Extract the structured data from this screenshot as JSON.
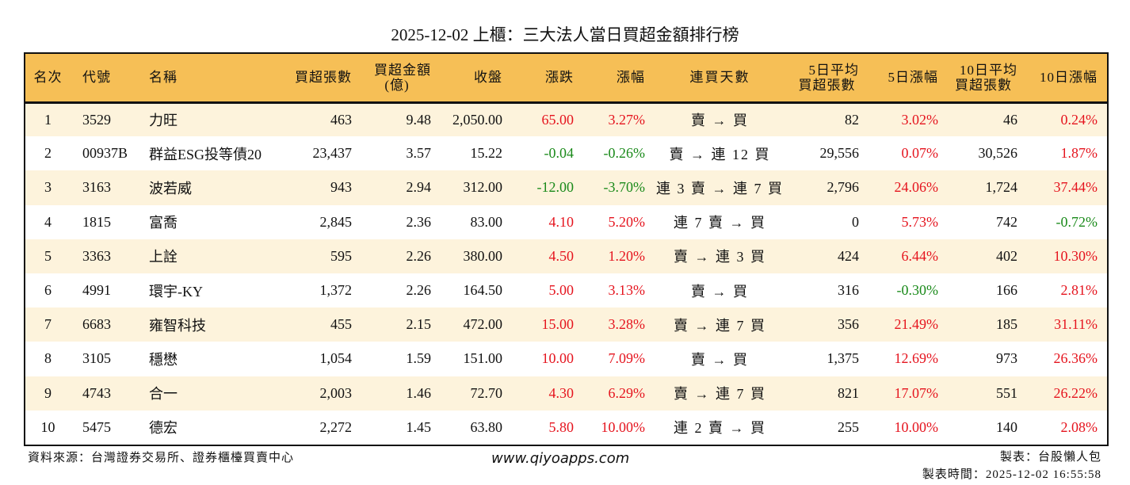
{
  "title": "2025-12-02 上櫃：三大法人當日買超金額排行榜",
  "headers": [
    "名次",
    "代號",
    "名稱",
    "買超張數",
    "買超金額\n(億)",
    "收盤",
    "漲跌",
    "漲幅",
    "連買天數",
    "5日平均\n買超張數",
    "5日漲幅",
    "10日平均\n買超張數",
    "10日漲幅"
  ],
  "colors": {
    "up": "#e5141e",
    "down": "#1a8a1a",
    "header_bg": "#f6bf56",
    "row_alt": "#fdf3dc"
  },
  "rows": [
    [
      "1",
      "3529",
      "力旺",
      "463",
      "9.48",
      "2,050.00",
      "65.00",
      "3.27%",
      "賣 → 買",
      "82",
      "3.02%",
      "46",
      "0.24%"
    ],
    [
      "2",
      "00937B",
      "群益ESG投等債20",
      "23,437",
      "3.57",
      "15.22",
      "-0.04",
      "-0.26%",
      "賣 → 連 12 買",
      "29,556",
      "0.07%",
      "30,526",
      "1.87%"
    ],
    [
      "3",
      "3163",
      "波若威",
      "943",
      "2.94",
      "312.00",
      "-12.00",
      "-3.70%",
      "連 3 賣 → 連 7 買",
      "2,796",
      "24.06%",
      "1,724",
      "37.44%"
    ],
    [
      "4",
      "1815",
      "富喬",
      "2,845",
      "2.36",
      "83.00",
      "4.10",
      "5.20%",
      "連 7 賣 → 買",
      "0",
      "5.73%",
      "742",
      "-0.72%"
    ],
    [
      "5",
      "3363",
      "上詮",
      "595",
      "2.26",
      "380.00",
      "4.50",
      "1.20%",
      "賣 → 連 3 買",
      "424",
      "6.44%",
      "402",
      "10.30%"
    ],
    [
      "6",
      "4991",
      "環宇-KY",
      "1,372",
      "2.26",
      "164.50",
      "5.00",
      "3.13%",
      "賣 → 買",
      "316",
      "-0.30%",
      "166",
      "2.81%"
    ],
    [
      "7",
      "6683",
      "雍智科技",
      "455",
      "2.15",
      "472.00",
      "15.00",
      "3.28%",
      "賣 → 連 7 買",
      "356",
      "21.49%",
      "185",
      "31.11%"
    ],
    [
      "8",
      "3105",
      "穩懋",
      "1,054",
      "1.59",
      "151.00",
      "10.00",
      "7.09%",
      "賣 → 買",
      "1,375",
      "12.69%",
      "973",
      "26.36%"
    ],
    [
      "9",
      "4743",
      "合一",
      "2,003",
      "1.46",
      "72.70",
      "4.30",
      "6.29%",
      "賣 → 連 7 買",
      "821",
      "17.07%",
      "551",
      "26.22%"
    ],
    [
      "10",
      "5475",
      "德宏",
      "2,272",
      "1.45",
      "63.80",
      "5.80",
      "10.00%",
      "連 2 賣 → 買",
      "255",
      "10.00%",
      "140",
      "2.08%"
    ]
  ],
  "footer": {
    "source": "資料來源：台灣證券交易所、證券櫃檯買賣中心",
    "website": "www.qiyoapps.com",
    "maker": "製表：台股懶人包",
    "made_time": "製表時間：2025-12-02 16:55:58"
  }
}
